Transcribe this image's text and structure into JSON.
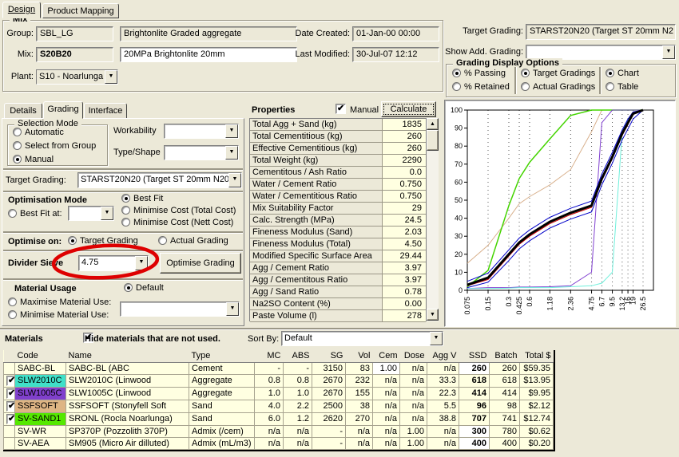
{
  "window_tabs": {
    "design": "Design",
    "product_mapping": "Product Mapping"
  },
  "mix": {
    "caption": "Mix",
    "group_label": "Group:",
    "group_value": "SBL_LG",
    "group_desc": "Brightonlite Graded aggregate",
    "mix_label": "Mix:",
    "mix_value": "S20B20",
    "mix_desc": "20MPa Brightonlite 20mm",
    "plant_label": "Plant:",
    "plant_value": "S10 - Noarlunga",
    "date_created_label": "Date Created:",
    "date_created": "01-Jan-00 00:00",
    "last_modified_label": "Last Modified:",
    "last_modified": "30-Jul-07 12:12"
  },
  "top_right": {
    "target_grading_label": "Target Grading:",
    "target_grading_value": "STARST20N20 (Target ST 20mm N2",
    "show_add_grading_label": "Show Add. Grading:",
    "show_add_grading_value": ""
  },
  "gdo": {
    "caption": "Grading Display Options",
    "groups": [
      {
        "options": [
          {
            "label": "% Passing",
            "selected": true
          },
          {
            "label": "% Retained",
            "selected": false
          }
        ]
      },
      {
        "options": [
          {
            "label": "Target Gradings",
            "selected": true
          },
          {
            "label": "Actual Gradings",
            "selected": false
          }
        ]
      },
      {
        "options": [
          {
            "label": "Chart",
            "selected": true
          },
          {
            "label": "Table",
            "selected": false
          }
        ]
      }
    ]
  },
  "left_tabs": {
    "details": "Details",
    "grading": "Grading",
    "interface": "Interface"
  },
  "selection_mode": {
    "caption": "Selection Mode",
    "options": [
      {
        "label": "Automatic",
        "selected": false
      },
      {
        "label": "Select from Group",
        "selected": false
      },
      {
        "label": "Manual",
        "selected": true
      }
    ]
  },
  "workability": {
    "label": "Workability",
    "value": ""
  },
  "type_shape": {
    "label": "Type/Shape",
    "value": ""
  },
  "target_grading": {
    "label": "Target Grading:",
    "value": "STARST20N20 (Target ST 20mm N20 gra"
  },
  "optimisation": {
    "caption": "Optimisation Mode",
    "mode_options": [
      {
        "label": "Best Fit",
        "selected": true
      },
      {
        "label": "Minimise Cost (Total Cost)",
        "selected": false
      },
      {
        "label": "Minimise Cost (Nett Cost)",
        "selected": false
      }
    ],
    "best_fit_at": {
      "label": "Best Fit at:",
      "selected": false,
      "value": ""
    }
  },
  "optimise_on": {
    "caption": "Optimise on:",
    "options": [
      {
        "label": "Target Grading",
        "selected": true
      },
      {
        "label": "Actual Grading",
        "selected": false
      }
    ]
  },
  "divider_sieve": {
    "label": "Divider Sieve",
    "value": "4.75",
    "button_label": "Optimise Grading",
    "annotation_color": "#DE0000"
  },
  "material_usage": {
    "caption": "Material Usage",
    "default_option": {
      "label": "Default",
      "selected": true
    },
    "maximise_option": {
      "label": "Maximise Material Use:",
      "selected": false
    },
    "minimise_option": {
      "label": "Minimise Material Use:",
      "selected": false
    },
    "combo_value": ""
  },
  "properties": {
    "caption": "Properties",
    "manual_label": "Manual",
    "manual_checked": true,
    "calculate_label": "Calculate",
    "rows": [
      [
        "Total Agg + Sand (kg)",
        "1835"
      ],
      [
        "Total Cementitious (kg)",
        "260"
      ],
      [
        "Effective Cementitious (kg)",
        "260"
      ],
      [
        "Total Weight (kg)",
        "2290"
      ],
      [
        "Cementitous / Ash Ratio",
        "0.0"
      ],
      [
        "Water / Cement Ratio",
        "0.750"
      ],
      [
        "Water / Cementitious Ratio",
        "0.750"
      ],
      [
        "Mix Suitability Factor",
        "29"
      ],
      [
        "Calc. Strength (MPa)",
        "24.5"
      ],
      [
        "Fineness Modulus (Sand)",
        "2.03"
      ],
      [
        "Fineness Modulus (Total)",
        "4.50"
      ],
      [
        "Modified Specific Surface Area",
        "29.44"
      ],
      [
        "Agg / Cement Ratio",
        "3.97"
      ],
      [
        "Agg / Cementitous Ratio",
        "3.97"
      ],
      [
        "Agg / Sand Ratio",
        "0.78"
      ],
      [
        "Na2SO Content (%)",
        "0.00"
      ],
      [
        "Paste Volume (l)",
        "278"
      ]
    ]
  },
  "chart_data": {
    "type": "line",
    "x_scale": "log",
    "ylim": [
      0,
      100
    ],
    "y_tick_step": 10,
    "grid": "vertical-dotted",
    "legend": "none",
    "x_tick_labels": [
      "0.075",
      "0.15",
      "0.3",
      "0.425",
      "0.6",
      "1.18",
      "2.36",
      "4.75",
      "6.7",
      "9.5",
      "13.2",
      "16",
      "19",
      "26.5"
    ],
    "x": [
      0.075,
      0.15,
      0.3,
      0.425,
      0.6,
      1.18,
      2.36,
      4.75,
      6.7,
      9.5,
      13.2,
      16,
      19,
      26.5
    ],
    "series": [
      {
        "name": "tan-curve",
        "color": "#D8B08C",
        "width": 1,
        "values": [
          15,
          25,
          40,
          48,
          52,
          58.5,
          67,
          88,
          100,
          100,
          100,
          100,
          100,
          100
        ]
      },
      {
        "name": "green-curve",
        "color": "#44D400",
        "width": 1.5,
        "values": [
          2,
          11,
          47,
          62,
          71,
          84,
          97,
          100,
          100,
          100,
          100,
          100,
          100,
          100
        ]
      },
      {
        "name": "purple-curve",
        "color": "#8040D0",
        "width": 1,
        "values": [
          1,
          1.5,
          1.5,
          1.8,
          1.8,
          2,
          2.5,
          10,
          93,
          100,
          100,
          100,
          100,
          100
        ]
      },
      {
        "name": "cyan-curve",
        "color": "#70F0DC",
        "width": 1,
        "values": [
          1,
          1,
          1.2,
          1.5,
          1.5,
          1.5,
          2,
          2.5,
          4,
          10,
          88,
          95,
          97.5,
          100
        ]
      },
      {
        "name": "blue-lower-curve",
        "color": "#0000C8",
        "width": 1,
        "values": [
          1.5,
          4.5,
          16.5,
          23,
          27.5,
          34.5,
          39.5,
          43.5,
          58.5,
          70.5,
          83.5,
          89.5,
          95,
          100
        ]
      },
      {
        "name": "blue-upper-curve",
        "color": "#0000C8",
        "width": 1,
        "values": [
          5,
          9.5,
          22.5,
          29,
          33.5,
          40.5,
          45.5,
          49.5,
          64.5,
          76.5,
          89,
          95,
          99,
          100
        ]
      },
      {
        "name": "red-curve",
        "color": "#D00000",
        "width": 1,
        "values": [
          2.5,
          6,
          19,
          25.5,
          30,
          37,
          42,
          46,
          61,
          73,
          86,
          92,
          97.5,
          100
        ]
      },
      {
        "name": "black-combined-curve",
        "color": "#000000",
        "width": 3,
        "values": [
          3,
          7,
          20,
          26.5,
          31,
          38,
          43,
          47,
          62,
          74,
          87,
          93,
          98,
          100
        ]
      }
    ]
  },
  "materials": {
    "caption": "Materials",
    "hide_label": "Hide materials that are not used.",
    "hide_checked": true,
    "sort_by_label": "Sort By:",
    "sort_by_value": "Default",
    "columns": [
      "Code",
      "Name",
      "Type",
      "MC",
      "ABS",
      "SG",
      "Vol",
      "Cem",
      "Dose",
      "Agg V",
      "SSD",
      "Batch",
      "Total $"
    ],
    "rows": [
      {
        "checked": false,
        "code": "SABC-BL",
        "color": "",
        "name": "SABC-BL (ABC",
        "type": "Cement",
        "mc": "-",
        "abs": "-",
        "sg": "3150",
        "vol": "83",
        "cem": "1.00",
        "dose": "n/a",
        "aggv": "n/a",
        "ssd": "260",
        "batch": "260",
        "total": "$59.35",
        "white_cells": [
          "cem",
          "ssd"
        ]
      },
      {
        "checked": true,
        "code": "SLW2010C",
        "color": "#40E0C8",
        "name": "SLW2010C (Linwood",
        "type": "Aggregate",
        "mc": "0.8",
        "abs": "0.8",
        "sg": "2670",
        "vol": "232",
        "cem": "n/a",
        "dose": "n/a",
        "aggv": "33.3",
        "ssd": "618",
        "batch": "618",
        "total": "$13.95",
        "white_cells": []
      },
      {
        "checked": true,
        "code": "SLW1005C",
        "color": "#8040CC",
        "name": "SLW1005C (Linwood",
        "type": "Aggregate",
        "mc": "1.0",
        "abs": "1.0",
        "sg": "2670",
        "vol": "155",
        "cem": "n/a",
        "dose": "n/a",
        "aggv": "22.3",
        "ssd": "414",
        "batch": "414",
        "total": "$9.95",
        "white_cells": []
      },
      {
        "checked": true,
        "code": "SSFSOFT",
        "color": "#DEB584",
        "name": "SSFSOFT (Stonyfell Soft",
        "type": "Sand",
        "mc": "4.0",
        "abs": "2.2",
        "sg": "2500",
        "vol": "38",
        "cem": "n/a",
        "dose": "n/a",
        "aggv": "5.5",
        "ssd": "96",
        "batch": "98",
        "total": "$2.12",
        "white_cells": []
      },
      {
        "checked": true,
        "code": "SV-SAND1",
        "color": "#55E800",
        "name": "SRONL (Rocla Noarlunga)",
        "type": "Sand",
        "mc": "6.0",
        "abs": "1.2",
        "sg": "2620",
        "vol": "270",
        "cem": "n/a",
        "dose": "n/a",
        "aggv": "38.8",
        "ssd": "707",
        "batch": "741",
        "total": "$12.74",
        "white_cells": []
      },
      {
        "checked": false,
        "code": "SV-WR",
        "color": "",
        "name": "SP370P (Pozzolith 370P)",
        "type": "Admix (/cem)",
        "mc": "n/a",
        "abs": "n/a",
        "sg": "-",
        "vol": "n/a",
        "cem": "n/a",
        "dose": "1.00",
        "aggv": "n/a",
        "ssd": "300",
        "batch": "780",
        "total": "$0.62",
        "white_cells": [
          "ssd"
        ]
      },
      {
        "checked": false,
        "code": "SV-AEA",
        "color": "",
        "name": "SM905 (Micro Air dilluted)",
        "type": "Admix (mL/m3)",
        "mc": "n/a",
        "abs": "n/a",
        "sg": "-",
        "vol": "n/a",
        "cem": "n/a",
        "dose": "1.00",
        "aggv": "n/a",
        "ssd": "400",
        "batch": "400",
        "total": "$0.20",
        "white_cells": [
          "ssd"
        ]
      }
    ]
  }
}
